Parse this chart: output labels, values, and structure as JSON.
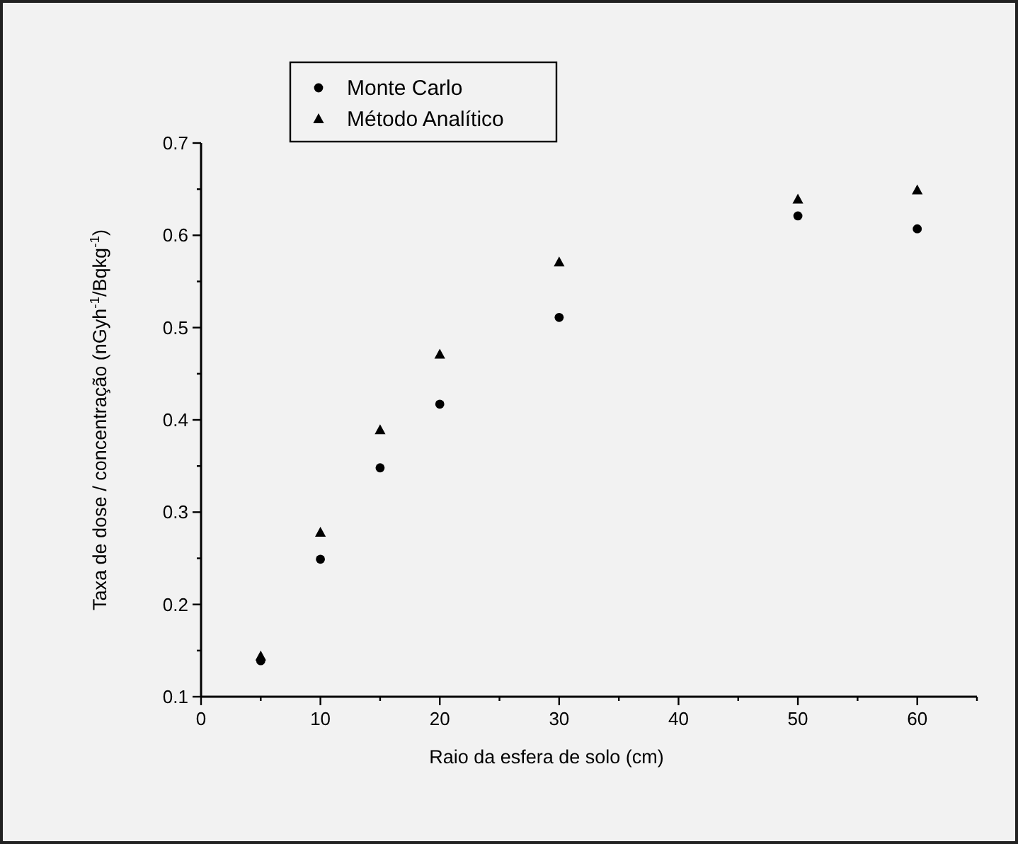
{
  "chart_data": {
    "type": "scatter",
    "xlabel": "Raio da esfera de solo (cm)",
    "ylabel": "Taxa de dose / concentração (nGyh$^{-1}$/Bqkg$^{-1}$)",
    "x": [
      5,
      10,
      15,
      20,
      30,
      50,
      60
    ],
    "series": [
      {
        "name": "Monte Carlo",
        "color": "#000000",
        "marker": "circle",
        "values": [
          0.139,
          0.249,
          0.348,
          0.417,
          0.511,
          0.621,
          0.607
        ]
      },
      {
        "name": "Método Analítico",
        "color": "#000000",
        "marker": "triangle",
        "values": [
          0.144,
          0.278,
          0.389,
          0.471,
          0.571,
          0.639,
          0.649
        ]
      }
    ],
    "xlim": [
      0,
      65
    ],
    "xticks": [
      0,
      {
        "value": 5,
        "label": null
      },
      10,
      {
        "value": 15,
        "label": null
      },
      20,
      {
        "value": 25,
        "label": null
      },
      30,
      {
        "value": 35,
        "label": null
      },
      40,
      {
        "value": 45,
        "label": null
      },
      50,
      {
        "value": 55,
        "label": null
      },
      60,
      {
        "value": 65,
        "label": null
      }
    ],
    "ylim": [
      0.1,
      0.7
    ],
    "yticks": [
      0.1,
      {
        "value": 0.15,
        "label": null
      },
      0.2,
      {
        "value": 0.25,
        "label": null
      },
      0.3,
      {
        "value": 0.35,
        "label": null
      },
      0.4,
      {
        "value": 0.45,
        "label": null
      },
      0.5,
      {
        "value": 0.55,
        "label": null
      },
      0.6,
      {
        "value": 0.65,
        "label": null
      },
      0.7
    ],
    "grid": false,
    "legend": "top"
  }
}
